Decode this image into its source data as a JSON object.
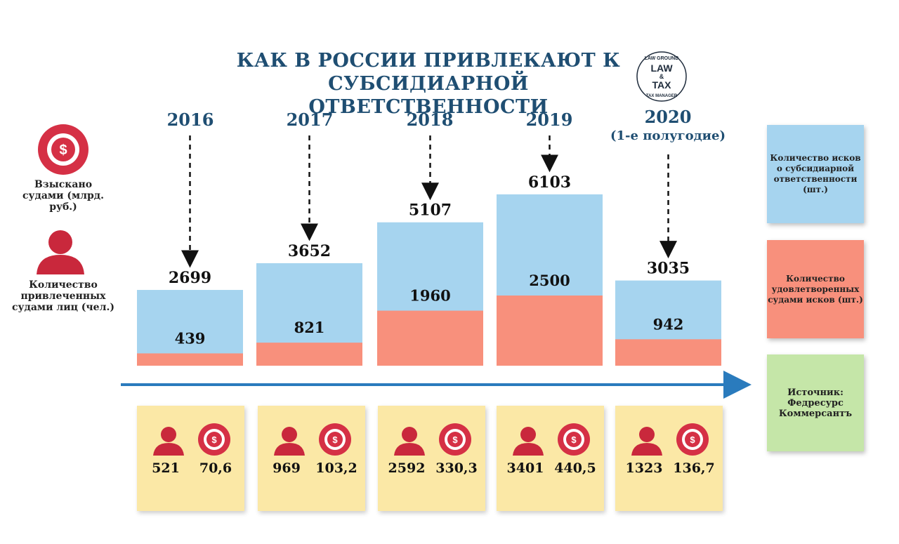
{
  "title_line1": "КАК В РОССИИ ПРИВЛЕКАЮТ К",
  "title_line2": "СУБСИДИАРНОЙ ОТВЕТСТВЕННОСТИ",
  "logo": {
    "top": "LAW GROUND",
    "main1": "LAW",
    "amp": "&",
    "main2": "TAX",
    "bottom": "TAX MANAGER"
  },
  "legend_left": {
    "money_label": "Взыскано судами (млрд. руб.)",
    "people_label": "Количество привлеченных судами лиц (чел.)"
  },
  "legend_right": {
    "claims": "Количество исков о субсидиарной ответственности (шт.)",
    "satisfied": "Количество удовлетворенных судами исков (шт.)",
    "source": "Источник: Федресурс Коммерсантъ"
  },
  "colors": {
    "claims": "#a6d4ef",
    "satisfied": "#f8907c",
    "source_box": "#c5e6a8",
    "card": "#fbe8a6",
    "accent": "#1f4e72",
    "icon_red": "#d53045"
  },
  "chart_data": {
    "type": "bar",
    "categories": [
      "2016",
      "2017",
      "2018",
      "2019",
      "2020"
    ],
    "category_notes": [
      "",
      "",
      "",
      "",
      "(1-е полугодие)"
    ],
    "series": [
      {
        "name": "Количество исков о субсидиарной ответственности (шт.)",
        "values": [
          2699,
          3652,
          5107,
          6103,
          3035
        ]
      },
      {
        "name": "Количество удовлетворенных судами исков (шт.)",
        "values": [
          439,
          821,
          1960,
          2500,
          942
        ]
      },
      {
        "name": "Количество привлеченных судами лиц (чел.)",
        "values": [
          521,
          969,
          2592,
          3401,
          1323
        ]
      },
      {
        "name": "Взыскано судами (млрд. руб.)",
        "values": [
          70.6,
          103.2,
          330.3,
          440.5,
          136.7
        ]
      }
    ],
    "value_labels": {
      "claims": [
        "2699",
        "3652",
        "5107",
        "6103",
        "3035"
      ],
      "satisfied": [
        "439",
        "821",
        "1960",
        "2500",
        "942"
      ],
      "people": [
        "521",
        "969",
        "2592",
        "3401",
        "1323"
      ],
      "money": [
        "70,6",
        "103,2",
        "330,3",
        "440,5",
        "136,7"
      ]
    },
    "title": "КАК В РОССИИ ПРИВЛЕКАЮТ К СУБСИДИАРНОЙ ОТВЕТСТВЕННОСТИ",
    "grid": false
  }
}
